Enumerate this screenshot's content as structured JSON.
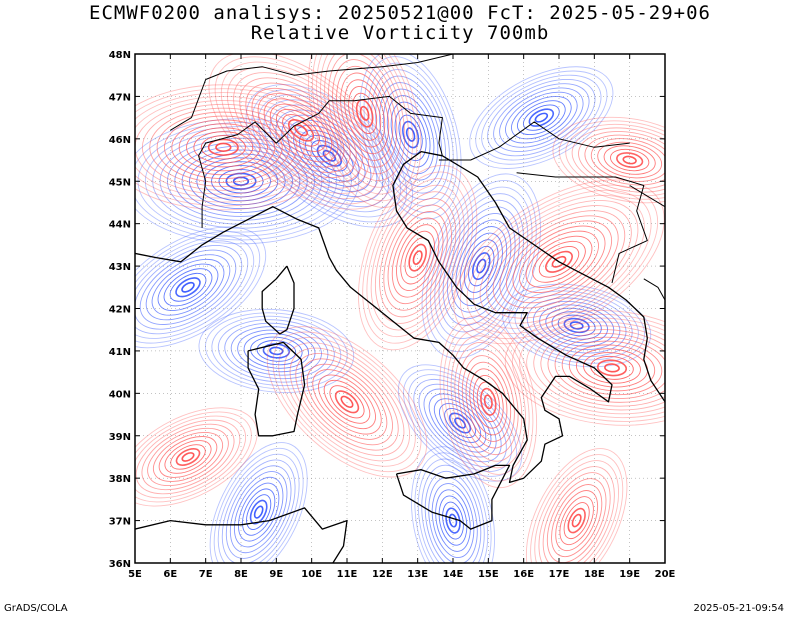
{
  "header": {
    "line1": "ECMWF0200 analisys: 20250521@00 FcT: 2025-05-29+06",
    "line2": "Relative Vorticity 700mb"
  },
  "footer": {
    "left": "GrADS/COLA",
    "right": "2025-05-21-09:54"
  },
  "map": {
    "lon_range": [
      5,
      20
    ],
    "lat_range": [
      36,
      48
    ],
    "lon_ticks": [
      "5E",
      "6E",
      "7E",
      "8E",
      "9E",
      "10E",
      "11E",
      "12E",
      "13E",
      "14E",
      "15E",
      "16E",
      "17E",
      "18E",
      "19E",
      "20E"
    ],
    "lat_ticks": [
      "36N",
      "37N",
      "38N",
      "39N",
      "40N",
      "41N",
      "42N",
      "43N",
      "44N",
      "45N",
      "46N",
      "47N",
      "48N"
    ],
    "colors": {
      "positive": "#ff4d4d",
      "negative": "#3355ff",
      "zero": "#b070c0",
      "coast": "#000000",
      "grid": "#888888"
    },
    "positive_centers": [
      {
        "lon": 7.5,
        "lat": 45.8,
        "amp": 1.0
      },
      {
        "lon": 9.7,
        "lat": 46.2,
        "amp": 0.9
      },
      {
        "lon": 11.5,
        "lat": 46.6,
        "amp": 0.8
      },
      {
        "lon": 13.0,
        "lat": 43.2,
        "amp": 0.8
      },
      {
        "lon": 17.0,
        "lat": 43.1,
        "amp": 1.0
      },
      {
        "lon": 18.5,
        "lat": 40.6,
        "amp": 0.9
      },
      {
        "lon": 11.0,
        "lat": 39.8,
        "amp": 0.8
      },
      {
        "lon": 15.0,
        "lat": 39.8,
        "amp": 0.7
      },
      {
        "lon": 17.5,
        "lat": 37.0,
        "amp": 0.6
      },
      {
        "lon": 6.5,
        "lat": 38.5,
        "amp": 0.5
      },
      {
        "lon": 19.0,
        "lat": 45.5,
        "amp": 0.6
      }
    ],
    "negative_centers": [
      {
        "lon": 8.0,
        "lat": 45.0,
        "amp": 1.0
      },
      {
        "lon": 10.5,
        "lat": 45.6,
        "amp": 0.8
      },
      {
        "lon": 12.8,
        "lat": 46.1,
        "amp": 0.7
      },
      {
        "lon": 14.8,
        "lat": 43.0,
        "amp": 0.8
      },
      {
        "lon": 6.5,
        "lat": 42.5,
        "amp": 0.7
      },
      {
        "lon": 9.0,
        "lat": 41.0,
        "amp": 0.6
      },
      {
        "lon": 14.2,
        "lat": 39.3,
        "amp": 0.5
      },
      {
        "lon": 14.0,
        "lat": 37.0,
        "amp": 0.5
      },
      {
        "lon": 8.5,
        "lat": 37.2,
        "amp": 0.5
      },
      {
        "lon": 16.5,
        "lat": 46.5,
        "amp": 0.6
      },
      {
        "lon": 17.5,
        "lat": 41.6,
        "amp": 0.5
      }
    ],
    "coastlines": [
      {
        "name": "italy",
        "points": [
          [
            7.5,
            43.8
          ],
          [
            8.2,
            44.1
          ],
          [
            8.9,
            44.4
          ],
          [
            9.6,
            44.1
          ],
          [
            10.2,
            43.9
          ],
          [
            10.5,
            43.2
          ],
          [
            10.7,
            42.9
          ],
          [
            11.1,
            42.5
          ],
          [
            11.7,
            42.1
          ],
          [
            12.3,
            41.7
          ],
          [
            12.9,
            41.3
          ],
          [
            13.6,
            41.2
          ],
          [
            14.0,
            40.9
          ],
          [
            14.3,
            40.6
          ],
          [
            14.9,
            40.3
          ],
          [
            15.4,
            40.0
          ],
          [
            15.7,
            39.7
          ],
          [
            16.0,
            39.4
          ],
          [
            16.1,
            38.9
          ],
          [
            15.7,
            38.3
          ],
          [
            15.6,
            37.9
          ],
          [
            16.0,
            38.0
          ],
          [
            16.5,
            38.4
          ],
          [
            16.6,
            38.8
          ],
          [
            17.1,
            39.0
          ],
          [
            17.0,
            39.4
          ],
          [
            16.6,
            39.6
          ],
          [
            16.5,
            39.9
          ],
          [
            16.9,
            40.4
          ],
          [
            17.3,
            40.4
          ],
          [
            17.9,
            40.1
          ],
          [
            18.4,
            39.8
          ],
          [
            18.5,
            40.2
          ],
          [
            18.0,
            40.6
          ],
          [
            17.2,
            40.9
          ],
          [
            16.4,
            41.3
          ],
          [
            15.9,
            41.6
          ],
          [
            16.1,
            41.9
          ],
          [
            15.2,
            41.9
          ],
          [
            14.6,
            42.1
          ],
          [
            14.1,
            42.5
          ],
          [
            13.6,
            43.1
          ],
          [
            13.3,
            43.6
          ],
          [
            12.7,
            43.9
          ],
          [
            12.4,
            44.3
          ],
          [
            12.3,
            44.9
          ],
          [
            12.6,
            45.4
          ],
          [
            13.1,
            45.7
          ],
          [
            13.7,
            45.6
          ]
        ]
      },
      {
        "name": "sicily",
        "points": [
          [
            12.4,
            38.1
          ],
          [
            13.1,
            38.2
          ],
          [
            13.8,
            38.0
          ],
          [
            14.6,
            38.1
          ],
          [
            15.2,
            38.3
          ],
          [
            15.6,
            38.3
          ],
          [
            15.1,
            37.5
          ],
          [
            15.1,
            37.0
          ],
          [
            14.5,
            36.8
          ],
          [
            14.2,
            37.0
          ],
          [
            13.4,
            37.2
          ],
          [
            12.6,
            37.6
          ],
          [
            12.4,
            38.1
          ]
        ]
      },
      {
        "name": "sardinia",
        "points": [
          [
            8.2,
            41.0
          ],
          [
            9.2,
            41.2
          ],
          [
            9.7,
            40.8
          ],
          [
            9.8,
            40.2
          ],
          [
            9.6,
            39.5
          ],
          [
            9.5,
            39.1
          ],
          [
            8.9,
            39.0
          ],
          [
            8.5,
            39.0
          ],
          [
            8.4,
            39.5
          ],
          [
            8.5,
            40.1
          ],
          [
            8.2,
            40.6
          ],
          [
            8.2,
            41.0
          ]
        ]
      },
      {
        "name": "corsica",
        "points": [
          [
            9.3,
            43.0
          ],
          [
            9.5,
            42.6
          ],
          [
            9.5,
            42.0
          ],
          [
            9.3,
            41.5
          ],
          [
            9.1,
            41.4
          ],
          [
            8.7,
            41.7
          ],
          [
            8.6,
            42.0
          ],
          [
            8.6,
            42.4
          ],
          [
            9.0,
            42.7
          ],
          [
            9.3,
            43.0
          ]
        ]
      },
      {
        "name": "balkan-coast",
        "points": [
          [
            13.7,
            45.6
          ],
          [
            14.3,
            45.3
          ],
          [
            14.7,
            45.1
          ],
          [
            15.2,
            44.5
          ],
          [
            15.6,
            43.9
          ],
          [
            16.3,
            43.5
          ],
          [
            17.0,
            43.1
          ],
          [
            17.7,
            42.8
          ],
          [
            18.4,
            42.5
          ],
          [
            18.9,
            42.2
          ],
          [
            19.4,
            41.8
          ],
          [
            19.5,
            41.3
          ],
          [
            19.4,
            40.8
          ],
          [
            19.6,
            40.3
          ],
          [
            20.0,
            39.8
          ]
        ]
      },
      {
        "name": "africa",
        "points": [
          [
            5.0,
            36.8
          ],
          [
            6.0,
            37.0
          ],
          [
            7.0,
            36.9
          ],
          [
            8.0,
            36.9
          ],
          [
            8.8,
            37.0
          ],
          [
            9.8,
            37.3
          ],
          [
            10.3,
            36.8
          ],
          [
            11.0,
            37.0
          ],
          [
            10.9,
            36.4
          ],
          [
            10.6,
            36.0
          ]
        ]
      },
      {
        "name": "france",
        "points": [
          [
            5.0,
            43.3
          ],
          [
            5.6,
            43.2
          ],
          [
            6.3,
            43.1
          ],
          [
            6.9,
            43.5
          ],
          [
            7.5,
            43.8
          ]
        ]
      }
    ],
    "borders": [
      {
        "name": "alps",
        "points": [
          [
            6.9,
            43.9
          ],
          [
            6.9,
            44.4
          ],
          [
            7.0,
            45.0
          ],
          [
            6.8,
            45.6
          ],
          [
            7.0,
            45.9
          ],
          [
            7.9,
            46.1
          ],
          [
            8.4,
            46.4
          ],
          [
            9.0,
            45.9
          ],
          [
            9.5,
            46.3
          ],
          [
            10.2,
            46.6
          ],
          [
            10.5,
            46.9
          ],
          [
            11.2,
            46.9
          ],
          [
            12.2,
            47.0
          ],
          [
            12.8,
            46.6
          ],
          [
            13.7,
            46.5
          ],
          [
            13.6,
            45.9
          ],
          [
            13.7,
            45.6
          ]
        ]
      },
      {
        "name": "swiss-north",
        "points": [
          [
            6.0,
            46.2
          ],
          [
            6.6,
            46.5
          ],
          [
            7.0,
            47.4
          ],
          [
            7.6,
            47.6
          ],
          [
            8.6,
            47.7
          ],
          [
            9.5,
            47.5
          ]
        ]
      },
      {
        "name": "austria-north",
        "points": [
          [
            9.5,
            47.5
          ],
          [
            10.5,
            47.6
          ],
          [
            12.0,
            47.7
          ],
          [
            13.0,
            47.8
          ],
          [
            14.0,
            48.0
          ]
        ]
      },
      {
        "name": "slovenia-croatia",
        "points": [
          [
            13.6,
            45.5
          ],
          [
            14.5,
            45.5
          ],
          [
            15.3,
            45.8
          ],
          [
            16.3,
            46.4
          ],
          [
            17.0,
            46.0
          ],
          [
            18.0,
            45.8
          ],
          [
            19.0,
            45.9
          ]
        ]
      },
      {
        "name": "bosnia",
        "points": [
          [
            15.8,
            45.2
          ],
          [
            16.9,
            45.1
          ],
          [
            18.6,
            45.1
          ],
          [
            19.4,
            44.9
          ],
          [
            19.2,
            44.3
          ],
          [
            19.5,
            43.6
          ],
          [
            18.7,
            43.3
          ],
          [
            18.5,
            42.6
          ]
        ]
      },
      {
        "name": "serbia",
        "points": [
          [
            19.0,
            44.9
          ],
          [
            20.0,
            44.4
          ]
        ]
      },
      {
        "name": "montenegro-albania",
        "points": [
          [
            19.4,
            42.7
          ],
          [
            19.8,
            42.5
          ],
          [
            20.0,
            42.2
          ]
        ]
      }
    ]
  }
}
